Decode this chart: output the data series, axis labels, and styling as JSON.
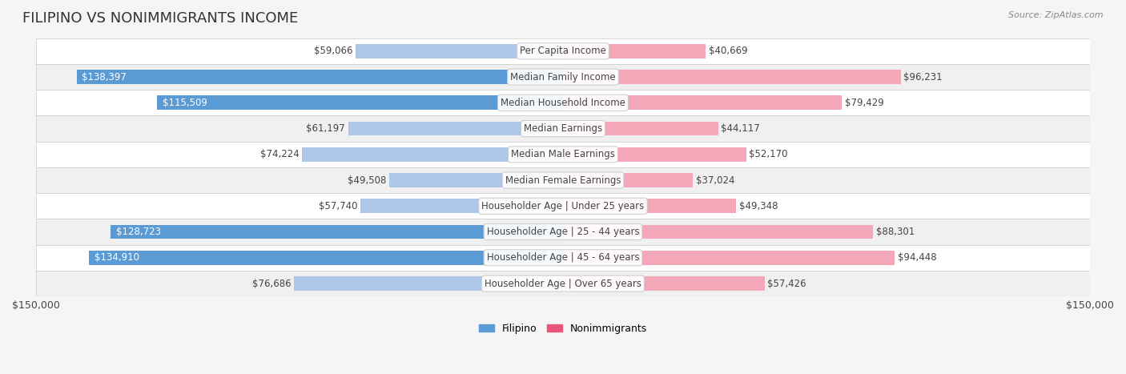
{
  "title": "FILIPINO VS NONIMMIGRANTS INCOME",
  "source": "Source: ZipAtlas.com",
  "categories": [
    "Per Capita Income",
    "Median Family Income",
    "Median Household Income",
    "Median Earnings",
    "Median Male Earnings",
    "Median Female Earnings",
    "Householder Age | Under 25 years",
    "Householder Age | 25 - 44 years",
    "Householder Age | 45 - 64 years",
    "Householder Age | Over 65 years"
  ],
  "filipino_values": [
    59066,
    138397,
    115509,
    61197,
    74224,
    49508,
    57740,
    128723,
    134910,
    76686
  ],
  "nonimmigrant_values": [
    40669,
    96231,
    79429,
    44117,
    52170,
    37024,
    49348,
    88301,
    94448,
    57426
  ],
  "filipino_labels": [
    "$59,066",
    "$138,397",
    "$115,509",
    "$61,197",
    "$74,224",
    "$49,508",
    "$57,740",
    "$128,723",
    "$134,910",
    "$76,686"
  ],
  "nonimmigrant_labels": [
    "$40,669",
    "$96,231",
    "$79,429",
    "$44,117",
    "$52,170",
    "$37,024",
    "$49,348",
    "$88,301",
    "$94,448",
    "$57,426"
  ],
  "max_value": 150000,
  "filipino_color_light": "#aec6e8",
  "filipino_color_dark": "#5b9bd5",
  "nonimmigrant_color_light": "#f4a7b9",
  "nonimmigrant_color_dark": "#e8547a",
  "label_threshold": 100000,
  "background_color": "#f5f5f5",
  "legend_filipino": "Filipino",
  "legend_nonimmigrant": "Nonimmigrants",
  "bar_height": 0.55,
  "title_fontsize": 13,
  "label_fontsize": 8.5,
  "source_fontsize": 8
}
